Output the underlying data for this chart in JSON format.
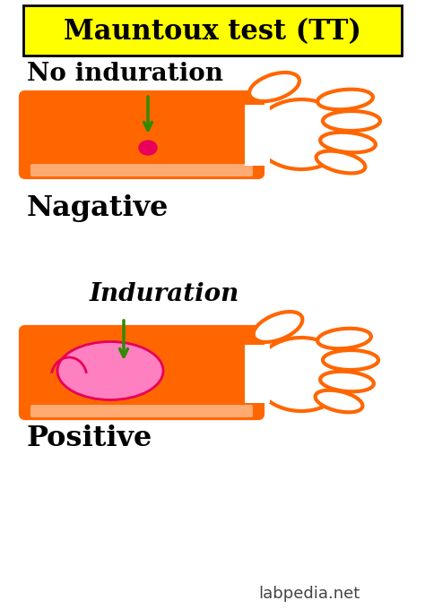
{
  "bg_color": "#ffffff",
  "title_text": "Mauntoux test (TT)",
  "title_bg": "#ffff00",
  "title_color": "#000000",
  "title_fontsize": 22,
  "orange_color": "#ff6600",
  "pink_small": "#e8005a",
  "pink_large": "#ff80c0",
  "green_arrow": "#2e8b00",
  "label_neg_top": "No induration",
  "label_neg_bottom": "Nagative",
  "label_pos_top": "Induration",
  "label_pos_bottom": "Positive",
  "watermark": "labpedia.net",
  "text_fontsize": 20,
  "watermark_fontsize": 13
}
